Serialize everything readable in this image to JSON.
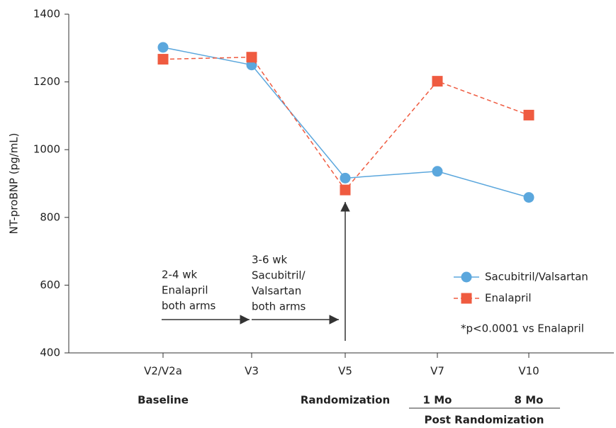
{
  "chart_data": {
    "type": "line",
    "y_label": "NT-proBNP (pg/mL)",
    "categories": [
      "V2/V2a",
      "V3",
      "V5",
      "V7",
      "V10"
    ],
    "period_labels": [
      "Baseline",
      null,
      "Randomization",
      "1 Mo",
      "8 Mo"
    ],
    "period_group_label": "Post Randomization",
    "series": [
      {
        "name": "Sacubitril/Valsartan",
        "color": "#5ba7dd",
        "marker": "circle",
        "dashed": false,
        "values": [
          1302,
          1250,
          916,
          936,
          859
        ]
      },
      {
        "name": "Enalapril",
        "color": "#ef5b40",
        "marker": "square",
        "dashed": true,
        "values": [
          1267,
          1273,
          881,
          1202,
          1102
        ]
      }
    ],
    "ylim": [
      400,
      1400
    ],
    "yticks": [
      400,
      600,
      800,
      1000,
      1200,
      1400
    ],
    "annotations": [
      {
        "lines": [
          "2-4 wk",
          "Enalapril",
          "both arms"
        ]
      },
      {
        "lines": [
          "3-6 wk",
          "Sacubitril/",
          "Valsartan",
          "both arms"
        ]
      }
    ],
    "footnote": "*p<0.0001 vs Enalapril",
    "legend": "right"
  }
}
